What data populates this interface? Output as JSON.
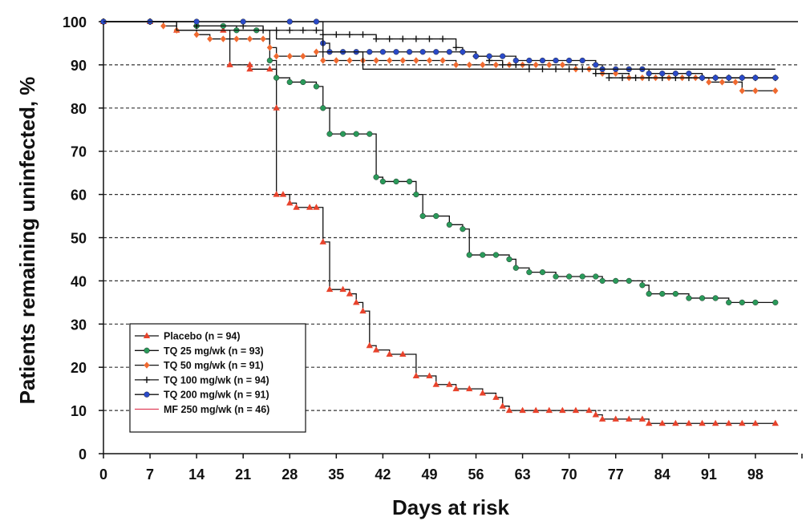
{
  "chart_data": {
    "type": "line",
    "ylabel": "Patients remaining uninfected, %",
    "xlabel": "Days at risk",
    "xlim": [
      0,
      105
    ],
    "ylim": [
      0,
      100
    ],
    "x_ticks": [
      0,
      7,
      14,
      21,
      28,
      35,
      42,
      49,
      56,
      63,
      70,
      77,
      84,
      91,
      98
    ],
    "y_ticks": [
      0,
      10,
      20,
      30,
      40,
      50,
      60,
      70,
      80,
      90,
      100
    ],
    "grid": "horizontal dashed",
    "legend_position": "lower-left",
    "series": [
      {
        "name": "Placebo (n = 94)",
        "color": "#e8432c",
        "marker": "triangle",
        "points": [
          [
            0,
            100
          ],
          [
            7,
            100
          ],
          [
            11,
            98
          ],
          [
            18,
            98
          ],
          [
            19,
            90
          ],
          [
            22,
            90
          ],
          [
            22,
            89
          ],
          [
            25,
            89
          ],
          [
            26,
            80
          ],
          [
            26,
            60
          ],
          [
            27,
            60
          ],
          [
            28,
            58
          ],
          [
            29,
            57
          ],
          [
            31,
            57
          ],
          [
            32,
            57
          ],
          [
            33,
            49
          ],
          [
            34,
            38
          ],
          [
            36,
            38
          ],
          [
            37,
            37
          ],
          [
            38,
            35
          ],
          [
            39,
            33
          ],
          [
            40,
            25
          ],
          [
            41,
            24
          ],
          [
            43,
            23
          ],
          [
            45,
            23
          ],
          [
            47,
            18
          ],
          [
            49,
            18
          ],
          [
            50,
            16
          ],
          [
            52,
            16
          ],
          [
            53,
            15
          ],
          [
            55,
            15
          ],
          [
            57,
            14
          ],
          [
            59,
            13
          ],
          [
            60,
            11
          ],
          [
            61,
            10
          ],
          [
            63,
            10
          ],
          [
            65,
            10
          ],
          [
            67,
            10
          ],
          [
            69,
            10
          ],
          [
            71,
            10
          ],
          [
            73,
            10
          ],
          [
            74,
            9
          ],
          [
            75,
            8
          ],
          [
            77,
            8
          ],
          [
            79,
            8
          ],
          [
            81,
            8
          ],
          [
            82,
            7
          ],
          [
            84,
            7
          ],
          [
            86,
            7
          ],
          [
            88,
            7
          ],
          [
            90,
            7
          ],
          [
            92,
            7
          ],
          [
            94,
            7
          ],
          [
            96,
            7
          ],
          [
            98,
            7
          ],
          [
            101,
            7
          ]
        ]
      },
      {
        "name": "TQ 25 mg/wk (n = 93)",
        "color": "#2a9a5a",
        "marker": "circle",
        "points": [
          [
            0,
            100
          ],
          [
            7,
            100
          ],
          [
            14,
            99
          ],
          [
            18,
            99
          ],
          [
            20,
            98
          ],
          [
            23,
            98
          ],
          [
            25,
            91
          ],
          [
            26,
            87
          ],
          [
            28,
            86
          ],
          [
            30,
            86
          ],
          [
            32,
            85
          ],
          [
            33,
            80
          ],
          [
            34,
            74
          ],
          [
            36,
            74
          ],
          [
            38,
            74
          ],
          [
            40,
            74
          ],
          [
            41,
            64
          ],
          [
            42,
            63
          ],
          [
            44,
            63
          ],
          [
            46,
            63
          ],
          [
            47,
            60
          ],
          [
            48,
            55
          ],
          [
            50,
            55
          ],
          [
            52,
            53
          ],
          [
            54,
            52
          ],
          [
            55,
            46
          ],
          [
            57,
            46
          ],
          [
            59,
            46
          ],
          [
            61,
            45
          ],
          [
            62,
            43
          ],
          [
            64,
            42
          ],
          [
            66,
            42
          ],
          [
            68,
            41
          ],
          [
            70,
            41
          ],
          [
            72,
            41
          ],
          [
            74,
            41
          ],
          [
            75,
            40
          ],
          [
            77,
            40
          ],
          [
            79,
            40
          ],
          [
            81,
            39
          ],
          [
            82,
            37
          ],
          [
            84,
            37
          ],
          [
            86,
            37
          ],
          [
            88,
            36
          ],
          [
            90,
            36
          ],
          [
            92,
            36
          ],
          [
            94,
            35
          ],
          [
            96,
            35
          ],
          [
            98,
            35
          ],
          [
            101,
            35
          ]
        ]
      },
      {
        "name": "TQ 50 mg/wk (n = 91)",
        "color": "#f06a30",
        "marker": "diamond",
        "points": [
          [
            0,
            100
          ],
          [
            7,
            100
          ],
          [
            9,
            99
          ],
          [
            11,
            98
          ],
          [
            14,
            97
          ],
          [
            16,
            96
          ],
          [
            18,
            96
          ],
          [
            20,
            96
          ],
          [
            22,
            96
          ],
          [
            24,
            96
          ],
          [
            25,
            94
          ],
          [
            26,
            92
          ],
          [
            28,
            92
          ],
          [
            30,
            92
          ],
          [
            32,
            93
          ],
          [
            33,
            91
          ],
          [
            35,
            91
          ],
          [
            37,
            91
          ],
          [
            39,
            91
          ],
          [
            41,
            91
          ],
          [
            43,
            91
          ],
          [
            45,
            91
          ],
          [
            47,
            91
          ],
          [
            49,
            91
          ],
          [
            51,
            91
          ],
          [
            53,
            90
          ],
          [
            55,
            90
          ],
          [
            57,
            90
          ],
          [
            59,
            90
          ],
          [
            61,
            90
          ],
          [
            63,
            90
          ],
          [
            65,
            90
          ],
          [
            67,
            90
          ],
          [
            69,
            90
          ],
          [
            71,
            89
          ],
          [
            73,
            89
          ],
          [
            75,
            88
          ],
          [
            77,
            88
          ],
          [
            79,
            87
          ],
          [
            81,
            87
          ],
          [
            83,
            87
          ],
          [
            85,
            87
          ],
          [
            87,
            87
          ],
          [
            89,
            87
          ],
          [
            91,
            86
          ],
          [
            93,
            86
          ],
          [
            95,
            86
          ],
          [
            96,
            84
          ],
          [
            98,
            84
          ],
          [
            101,
            84
          ]
        ]
      },
      {
        "name": "TQ 100 mg/wk (n = 94)",
        "color": "#111111",
        "marker": "plus",
        "points": [
          [
            0,
            100
          ],
          [
            7,
            100
          ],
          [
            14,
            99
          ],
          [
            21,
            99
          ],
          [
            24,
            98
          ],
          [
            26,
            98
          ],
          [
            28,
            98
          ],
          [
            30,
            98
          ],
          [
            32,
            98
          ],
          [
            33,
            97
          ],
          [
            35,
            97
          ],
          [
            37,
            97
          ],
          [
            39,
            97
          ],
          [
            41,
            96
          ],
          [
            43,
            96
          ],
          [
            45,
            96
          ],
          [
            47,
            96
          ],
          [
            49,
            96
          ],
          [
            51,
            96
          ],
          [
            53,
            94
          ],
          [
            54,
            93
          ],
          [
            56,
            92
          ],
          [
            58,
            91
          ],
          [
            60,
            90
          ],
          [
            62,
            90
          ],
          [
            64,
            89
          ],
          [
            66,
            89
          ],
          [
            68,
            89
          ],
          [
            70,
            89
          ],
          [
            72,
            89
          ],
          [
            74,
            88
          ],
          [
            76,
            87
          ],
          [
            78,
            87
          ],
          [
            80,
            87
          ],
          [
            82,
            87
          ],
          [
            84,
            87
          ],
          [
            86,
            87
          ],
          [
            88,
            87
          ],
          [
            90,
            87
          ],
          [
            92,
            87
          ],
          [
            94,
            87
          ],
          [
            96,
            87
          ],
          [
            98,
            87
          ],
          [
            101,
            87
          ]
        ]
      },
      {
        "name": "TQ 200 mg/wk (n = 91)",
        "color": "#2a4ac8",
        "marker": "circle",
        "points": [
          [
            0,
            100
          ],
          [
            7,
            100
          ],
          [
            14,
            100
          ],
          [
            21,
            100
          ],
          [
            28,
            100
          ],
          [
            32,
            100
          ],
          [
            33,
            95
          ],
          [
            34,
            93
          ],
          [
            36,
            93
          ],
          [
            38,
            93
          ],
          [
            40,
            93
          ],
          [
            42,
            93
          ],
          [
            44,
            93
          ],
          [
            46,
            93
          ],
          [
            48,
            93
          ],
          [
            50,
            93
          ],
          [
            52,
            93
          ],
          [
            54,
            93
          ],
          [
            56,
            92
          ],
          [
            58,
            92
          ],
          [
            60,
            92
          ],
          [
            62,
            91
          ],
          [
            64,
            91
          ],
          [
            66,
            91
          ],
          [
            68,
            91
          ],
          [
            70,
            91
          ],
          [
            72,
            91
          ],
          [
            74,
            90
          ],
          [
            75,
            89
          ],
          [
            77,
            89
          ],
          [
            79,
            89
          ],
          [
            81,
            89
          ],
          [
            82,
            88
          ],
          [
            84,
            88
          ],
          [
            86,
            88
          ],
          [
            88,
            88
          ],
          [
            90,
            87
          ],
          [
            92,
            87
          ],
          [
            94,
            87
          ],
          [
            96,
            87
          ],
          [
            98,
            87
          ],
          [
            101,
            87
          ]
        ]
      },
      {
        "name": "MF 250 mg/wk (n = 46)",
        "color": "#e0405a",
        "marker": "none",
        "points": [
          [
            0,
            100
          ],
          [
            11,
            100
          ],
          [
            11,
            98
          ],
          [
            26,
            98
          ],
          [
            26,
            96
          ],
          [
            33,
            96
          ],
          [
            33,
            93
          ],
          [
            39,
            93
          ],
          [
            39,
            89
          ],
          [
            101,
            89
          ]
        ]
      }
    ]
  }
}
